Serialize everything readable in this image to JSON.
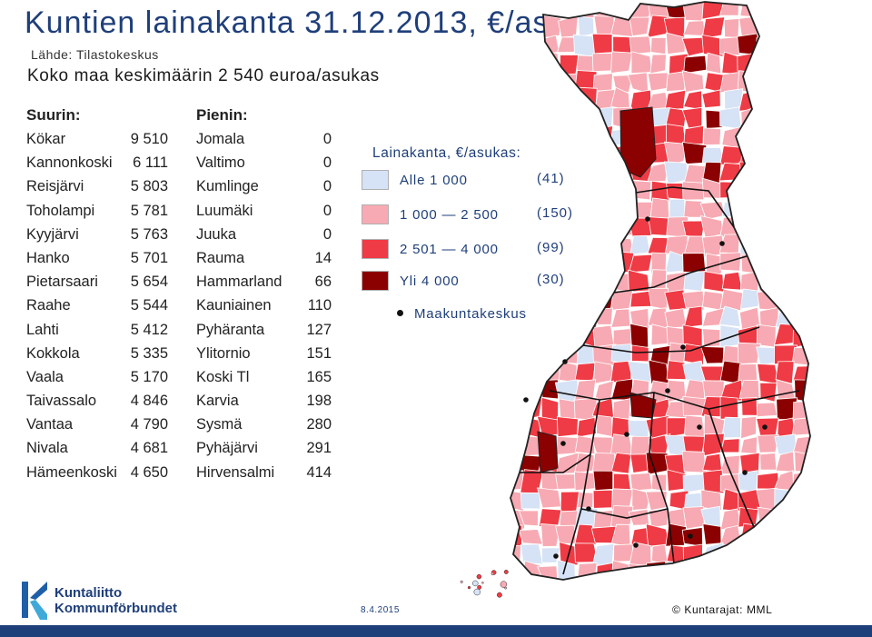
{
  "title": "Kuntien lainakanta 31.12.2013, €/as.",
  "source": "Lähde: Tilastokeskus",
  "national_average": "Koko maa keskimäärin 2 540 euroa/asukas",
  "largest": {
    "header": "Suurin:",
    "rows": [
      {
        "name": "Kökar",
        "value": "9 510"
      },
      {
        "name": "Kannonkoski",
        "value": "6 111"
      },
      {
        "name": "Reisjärvi",
        "value": "5 803"
      },
      {
        "name": "Toholampi",
        "value": "5 781"
      },
      {
        "name": "Kyyjärvi",
        "value": "5 763"
      },
      {
        "name": "Hanko",
        "value": "5 701"
      },
      {
        "name": "Pietarsaari",
        "value": "5 654"
      },
      {
        "name": "Raahe",
        "value": "5 544"
      },
      {
        "name": "Lahti",
        "value": "5 412"
      },
      {
        "name": "Kokkola",
        "value": "5 335"
      },
      {
        "name": "Vaala",
        "value": "5 170"
      },
      {
        "name": "Taivassalo",
        "value": "4 846"
      },
      {
        "name": "Vantaa",
        "value": "4 790"
      },
      {
        "name": "Nivala",
        "value": "4 681"
      },
      {
        "name": "Hämeenkoski",
        "value": "4 650"
      }
    ]
  },
  "smallest": {
    "header": "Pienin:",
    "rows": [
      {
        "name": "Jomala",
        "value": "0"
      },
      {
        "name": "Valtimo",
        "value": "0"
      },
      {
        "name": "Kumlinge",
        "value": "0"
      },
      {
        "name": "Luumäki",
        "value": "0"
      },
      {
        "name": "Juuka",
        "value": "0"
      },
      {
        "name": "Rauma",
        "value": "14"
      },
      {
        "name": "Hammarland",
        "value": "66"
      },
      {
        "name": "Kauniainen",
        "value": "110"
      },
      {
        "name": "Pyhäranta",
        "value": "127"
      },
      {
        "name": "Ylitornio",
        "value": "151"
      },
      {
        "name": "Koski Tl",
        "value": "165"
      },
      {
        "name": "Karvia",
        "value": "198"
      },
      {
        "name": "Sysmä",
        "value": "280"
      },
      {
        "name": "Pyhäjärvi",
        "value": "291"
      },
      {
        "name": "Hirvensalmi",
        "value": "414"
      }
    ]
  },
  "legend": {
    "title": "Lainakanta, €/asukas:",
    "items": [
      {
        "label": "Alle 1 000",
        "count": "(41)",
        "color": "#d6e2f5"
      },
      {
        "label": "1 000 — 2 500",
        "count": "(150)",
        "color": "#f7aab3"
      },
      {
        "label": "2 501 — 4 000",
        "count": "(99)",
        "color": "#ef3b45"
      },
      {
        "label": "Yli 4 000",
        "count": "(30)",
        "color": "#8b0000"
      }
    ],
    "capital_label": "Maakuntakeskus"
  },
  "footer": {
    "logo_line1": "Kuntaliitto",
    "logo_line2": "Kommunförbundet",
    "date": "8.4.2015",
    "copyright": "© Kuntarajat: MML"
  }
}
